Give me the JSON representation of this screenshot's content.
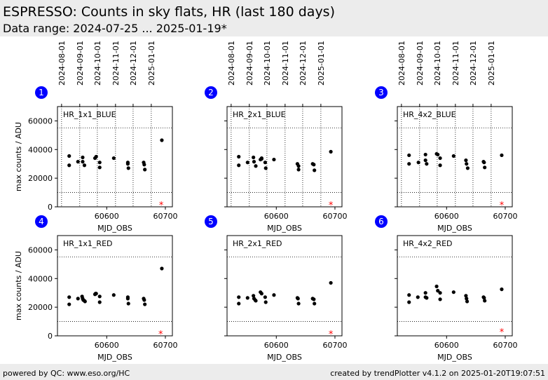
{
  "header": {
    "title": "ESPRESSO: Counts in sky flats, HR (last 180 days)",
    "subtitle": "Data range: 2024-07-25 ... 2025-01-19*"
  },
  "footer": {
    "left": "powered by QC: www.eso.org/HC",
    "right": "created by trendPlotter v4.1.2 on 2025-01-20T19:07:51"
  },
  "colors": {
    "data_point": "#000000",
    "outlier": "#ff0000",
    "badge": "#0000ff",
    "header_bg": "#ececec"
  },
  "chart_data": [
    {
      "type": "scatter",
      "number": "1",
      "panel_label": "HR_1x1_BLUE",
      "xlabel": "MJD_OBS",
      "ylabel": "max counts / ADU",
      "xlim": [
        60516,
        60712
      ],
      "ylim": [
        0,
        70000
      ],
      "x_ticks": [
        60600,
        60700
      ],
      "y_ticks": [
        0,
        20000,
        40000,
        60000
      ],
      "date_ticks": [
        "2024-08-01",
        "2024-09-01",
        "2024-10-01",
        "2024-11-01",
        "2024-12-01",
        "2025-01-01"
      ],
      "date_tick_mjd": [
        60523,
        60554,
        60584,
        60615,
        60645,
        60676
      ],
      "hlines": [
        10000,
        55000
      ],
      "x": [
        60536,
        60536,
        60551,
        60559,
        60559,
        60562,
        60580,
        60582,
        60588,
        60588,
        60612,
        60636,
        60636,
        60637,
        60663,
        60664,
        60665,
        60694
      ],
      "y": [
        35500,
        29000,
        31500,
        34500,
        31500,
        29000,
        34000,
        35000,
        31000,
        27500,
        34000,
        31000,
        30000,
        27000,
        31000,
        29500,
        26000,
        46500
      ],
      "outliers": {
        "x": [
          60693
        ],
        "y": [
          1500
        ]
      }
    },
    {
      "type": "scatter",
      "number": "2",
      "panel_label": "HR_2x1_BLUE",
      "xlabel": "MJD_OBS",
      "ylabel": "",
      "xlim": [
        60516,
        60712
      ],
      "ylim": [
        0,
        70000
      ],
      "x_ticks": [
        60600,
        60700
      ],
      "y_ticks": [
        0,
        20000,
        40000,
        60000
      ],
      "date_ticks": [
        "2024-08-01",
        "2024-09-01",
        "2024-10-01",
        "2024-11-01",
        "2024-12-01",
        "2025-01-01"
      ],
      "date_tick_mjd": [
        60523,
        60554,
        60584,
        60615,
        60645,
        60676
      ],
      "hlines": [
        10000,
        55000
      ],
      "x": [
        60536,
        60536,
        60551,
        60561,
        60562,
        60565,
        60573,
        60575,
        60575,
        60581,
        60582,
        60596,
        60636,
        60638,
        60638,
        60662,
        60664,
        60665,
        60693
      ],
      "y": [
        35000,
        29000,
        31000,
        34500,
        31500,
        28500,
        33000,
        34000,
        33500,
        31000,
        27000,
        33000,
        30000,
        28500,
        26000,
        30000,
        29500,
        25500,
        38500
      ],
      "outliers": {
        "x": [
          60693
        ],
        "y": [
          1500
        ]
      }
    },
    {
      "type": "scatter",
      "number": "3",
      "panel_label": "HR_4x2_BLUE",
      "xlabel": "MJD_OBS",
      "ylabel": "",
      "xlim": [
        60516,
        60712
      ],
      "ylim": [
        0,
        70000
      ],
      "x_ticks": [
        60600,
        60700
      ],
      "y_ticks": [
        0,
        20000,
        40000,
        60000
      ],
      "date_ticks": [
        "2024-08-01",
        "2024-09-01",
        "2024-10-01",
        "2024-11-01",
        "2024-12-01",
        "2025-01-01"
      ],
      "date_tick_mjd": [
        60523,
        60554,
        60584,
        60615,
        60645,
        60676
      ],
      "hlines": [
        10000,
        55000
      ],
      "x": [
        60536,
        60536,
        60552,
        60564,
        60564,
        60566,
        60583,
        60585,
        60589,
        60589,
        60612,
        60633,
        60634,
        60636,
        60663,
        60664,
        60665,
        60694
      ],
      "y": [
        36000,
        30000,
        31000,
        36500,
        32500,
        30000,
        37000,
        36500,
        29000,
        34000,
        35500,
        32500,
        30000,
        27000,
        31500,
        31000,
        27500,
        36000
      ],
      "outliers": {
        "x": [
          60694
        ],
        "y": [
          1500
        ]
      }
    },
    {
      "type": "scatter",
      "number": "4",
      "panel_label": "HR_1x1_RED",
      "xlabel": "MJD_OBS",
      "ylabel": "max counts / ADU",
      "xlim": [
        60516,
        60712
      ],
      "ylim": [
        0,
        70000
      ],
      "x_ticks": [
        60600,
        60700
      ],
      "y_ticks": [
        0,
        20000,
        40000,
        60000
      ],
      "date_ticks": [],
      "date_tick_mjd": [],
      "hlines": [
        10000,
        55000
      ],
      "x": [
        60536,
        60536,
        60551,
        60558,
        60559,
        60560,
        60562,
        60563,
        60580,
        60581,
        60582,
        60588,
        60588,
        60612,
        60636,
        60636,
        60637,
        60663,
        60664,
        60665,
        60694
      ],
      "y": [
        27000,
        22000,
        26000,
        27500,
        26000,
        25000,
        24500,
        24000,
        29000,
        29500,
        29500,
        27500,
        23500,
        28500,
        27000,
        26000,
        22500,
        26000,
        25000,
        22000,
        47000
      ],
      "outliers": {
        "x": [
          60692
        ],
        "y": [
          1500
        ]
      }
    },
    {
      "type": "scatter",
      "number": "5",
      "panel_label": "HR_2x1_RED",
      "xlabel": "MJD_OBS",
      "ylabel": "",
      "xlim": [
        60516,
        60712
      ],
      "ylim": [
        0,
        70000
      ],
      "x_ticks": [
        60600,
        60700
      ],
      "y_ticks": [
        0,
        20000,
        40000,
        60000
      ],
      "date_ticks": [],
      "date_tick_mjd": [],
      "hlines": [
        10000,
        55000
      ],
      "x": [
        60536,
        60536,
        60551,
        60561,
        60562,
        60564,
        60565,
        60573,
        60575,
        60581,
        60582,
        60596,
        60636,
        60637,
        60638,
        60662,
        60664,
        60665,
        60693
      ],
      "y": [
        27000,
        22500,
        26500,
        28000,
        26000,
        25000,
        24500,
        30500,
        29500,
        27000,
        23500,
        28500,
        26500,
        26000,
        22500,
        26000,
        25500,
        22500,
        37000
      ],
      "outliers": {
        "x": [
          60693
        ],
        "y": [
          1500
        ]
      }
    },
    {
      "type": "scatter",
      "number": "6",
      "panel_label": "HR_4x2_RED",
      "xlabel": "MJD_OBS",
      "ylabel": "",
      "xlim": [
        60516,
        60712
      ],
      "ylim": [
        0,
        70000
      ],
      "x_ticks": [
        60600,
        60700
      ],
      "y_ticks": [
        0,
        20000,
        40000,
        60000
      ],
      "date_ticks": [],
      "date_tick_mjd": [],
      "hlines": [
        10000,
        55000
      ],
      "x": [
        60536,
        60536,
        60551,
        60564,
        60564,
        60566,
        60583,
        60585,
        60589,
        60589,
        60612,
        60633,
        60634,
        60635,
        60663,
        60664,
        60665,
        60694
      ],
      "y": [
        28500,
        23500,
        27000,
        30000,
        27000,
        26500,
        34500,
        31500,
        30000,
        25500,
        30500,
        28000,
        26000,
        24000,
        27000,
        26500,
        24500,
        32500
      ],
      "outliers": {
        "x": [
          60694
        ],
        "y": [
          3000
        ]
      }
    }
  ]
}
